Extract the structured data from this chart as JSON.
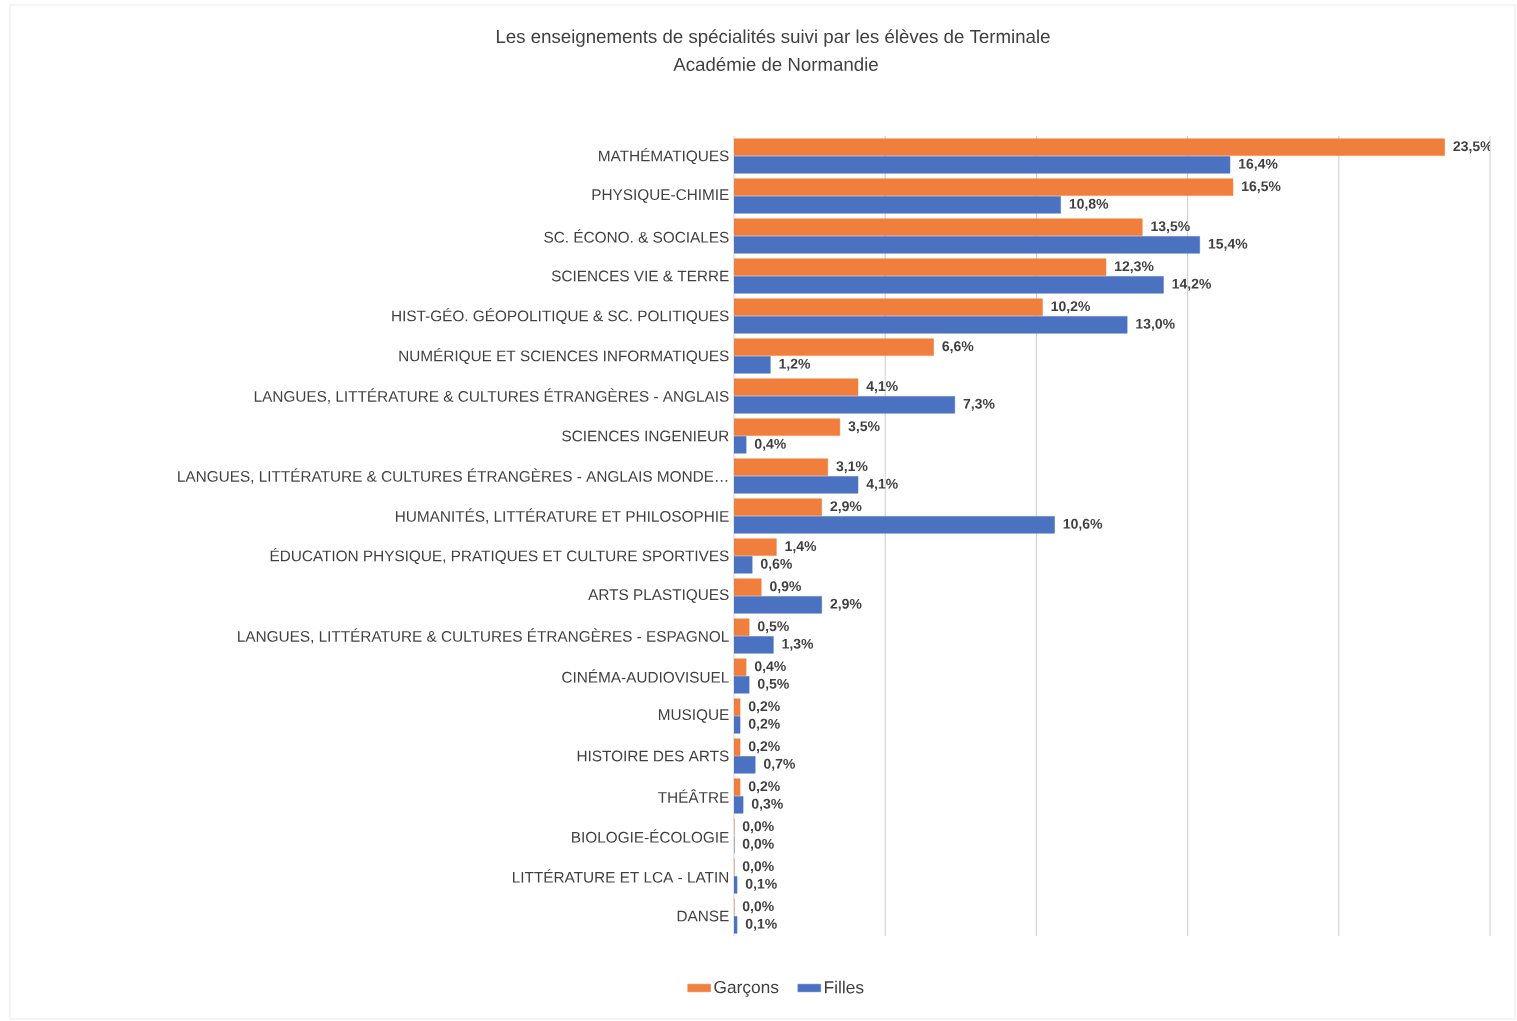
{
  "chart_data": {
    "type": "bar",
    "orientation": "horizontal",
    "title": "Les enseignements de spécialités suivi par les élèves de Terminale",
    "subtitle": "Académie de Normandie",
    "categories": [
      "MATHÉMATIQUES",
      "PHYSIQUE-CHIMIE",
      "SC. ÉCONO. & SOCIALES",
      "SCIENCES VIE & TERRE",
      "HIST-GÉO. GÉOPOLITIQUE & SC. POLITIQUES",
      "NUMÉRIQUE ET SCIENCES INFORMATIQUES",
      "LANGUES, LITTÉRATURE & CULTURES ÉTRANGÈRES - ANGLAIS",
      "SCIENCES INGENIEUR",
      "LANGUES, LITTÉRATURE & CULTURES ÉTRANGÈRES - ANGLAIS MONDE…",
      "HUMANITÉS, LITTÉRATURE ET PHILOSOPHIE",
      "ÉDUCATION PHYSIQUE, PRATIQUES ET CULTURE SPORTIVES",
      "ARTS PLASTIQUES",
      "LANGUES, LITTÉRATURE & CULTURES ÉTRANGÈRES - ESPAGNOL",
      "CINÉMA-AUDIOVISUEL",
      "MUSIQUE",
      "HISTOIRE DES ARTS",
      "THÉÂTRE",
      "BIOLOGIE-ÉCOLOGIE",
      "LITTÉRATURE ET LCA - LATIN",
      "DANSE"
    ],
    "series": [
      {
        "name": "Garçons",
        "color": "#f07e3c",
        "values": [
          23.5,
          16.5,
          13.5,
          12.3,
          10.2,
          6.6,
          4.1,
          3.5,
          3.1,
          2.9,
          1.4,
          0.9,
          0.5,
          0.4,
          0.2,
          0.2,
          0.2,
          0.0,
          0.0,
          0.0
        ],
        "value_labels": [
          "23,5%",
          "16,5%",
          "13,5%",
          "12,3%",
          "10,2%",
          "6,6%",
          "4,1%",
          "3,5%",
          "3,1%",
          "2,9%",
          "1,4%",
          "0,9%",
          "0,5%",
          "0,4%",
          "0,2%",
          "0,2%",
          "0,2%",
          "0,0%",
          "0,0%",
          "0,0%"
        ]
      },
      {
        "name": "Filles",
        "color": "#4a72c0",
        "values": [
          16.4,
          10.8,
          15.4,
          14.2,
          13.0,
          1.2,
          7.3,
          0.4,
          4.1,
          10.6,
          0.6,
          2.9,
          1.3,
          0.5,
          0.2,
          0.7,
          0.3,
          0.0,
          0.1,
          0.1
        ],
        "value_labels": [
          "16,4%",
          "10,8%",
          "15,4%",
          "14,2%",
          "13,0%",
          "1,2%",
          "7,3%",
          "0,4%",
          "4,1%",
          "10,6%",
          "0,6%",
          "2,9%",
          "1,3%",
          "0,5%",
          "0,2%",
          "0,7%",
          "0,3%",
          "0,0%",
          "0,1%",
          "0,1%"
        ]
      }
    ],
    "xlim": [
      0,
      25
    ],
    "xticks": [
      {
        "value": 0,
        "label": null
      },
      {
        "value": 5,
        "label": null
      },
      {
        "value": 10,
        "label": null
      },
      {
        "value": 15,
        "label": null
      },
      {
        "value": 20,
        "label": null
      },
      {
        "value": 25,
        "label": null
      }
    ],
    "tick_labels": "y",
    "grid": "x",
    "legend": "bottom"
  }
}
